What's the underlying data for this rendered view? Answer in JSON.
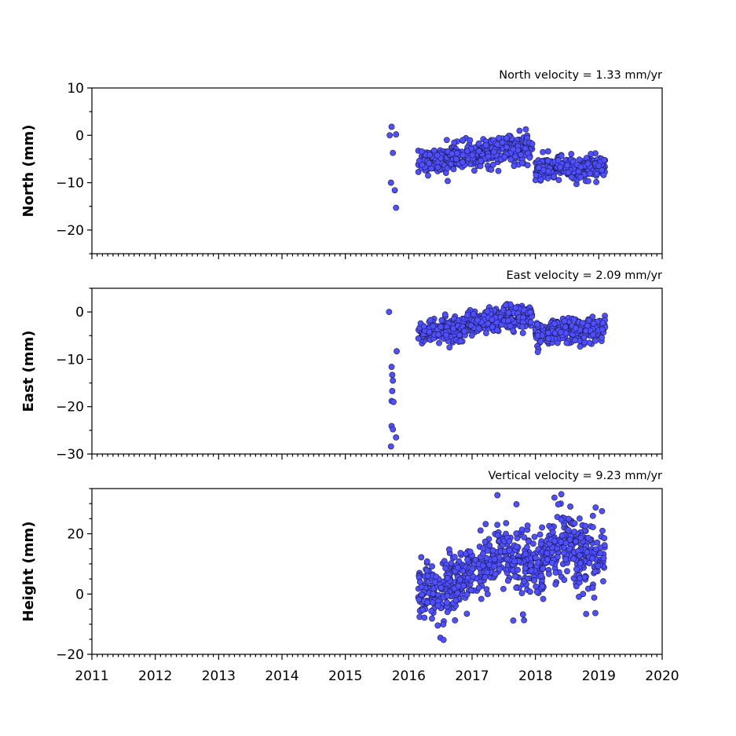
{
  "chart_data": {
    "type": "scatter",
    "x_axis": {
      "ticks": [
        2011,
        2012,
        2013,
        2014,
        2015,
        2016,
        2017,
        2018,
        2019,
        2020
      ],
      "labels": [
        "2011",
        "2012",
        "2013",
        "2014",
        "2015",
        "2016",
        "2017",
        "2018",
        "2019",
        "2020"
      ],
      "range": [
        2011,
        2020
      ],
      "minor_per_year": 12
    },
    "marker_color": "#4f4fff",
    "marker_edge_color": "#1a1a4d",
    "grid": false,
    "panels": [
      {
        "id": "north",
        "title": "North velocity = 1.33 mm/yr",
        "ylabel": "North (mm)",
        "ylim": [
          -25,
          10
        ],
        "yticks": [
          10,
          0,
          -10,
          -20
        ],
        "ytick_labels": [
          "10",
          "0",
          "−10",
          "−20"
        ],
        "velocity_mm_yr": 1.33,
        "outliers": [
          [
            2015.7,
            0.0
          ],
          [
            2015.73,
            1.8
          ],
          [
            2015.75,
            -3.7
          ],
          [
            2015.72,
            -10.0
          ],
          [
            2015.78,
            -11.6
          ],
          [
            2015.8,
            -15.3
          ],
          [
            2015.8,
            0.2
          ]
        ],
        "segments": [
          {
            "x0": 2016.15,
            "x1": 2016.6,
            "y0": -5.8,
            "y1": -5.2,
            "spread": 1.2
          },
          {
            "x0": 2016.6,
            "x1": 2017.95,
            "y0": -4.8,
            "y1": -2.6,
            "spread": 1.4
          },
          {
            "x0": 2018.0,
            "x1": 2019.1,
            "y0": -7.3,
            "y1": -6.6,
            "spread": 1.2
          }
        ]
      },
      {
        "id": "east",
        "title": "East velocity = 2.09 mm/yr",
        "ylabel": "East (mm)",
        "ylim": [
          -30,
          5
        ],
        "yticks": [
          0,
          -10,
          -20,
          -30
        ],
        "ytick_labels": [
          "0",
          "−10",
          "−20",
          "−30"
        ],
        "velocity_mm_yr": 2.09,
        "outliers": [
          [
            2015.69,
            0.0
          ],
          [
            2015.73,
            -11.6
          ],
          [
            2015.74,
            -13.3
          ],
          [
            2015.75,
            -14.5
          ],
          [
            2015.74,
            -16.7
          ],
          [
            2015.73,
            -18.8
          ],
          [
            2015.76,
            -19.0
          ],
          [
            2015.73,
            -24.1
          ],
          [
            2015.75,
            -24.8
          ],
          [
            2015.72,
            -28.4
          ],
          [
            2015.8,
            -26.5
          ],
          [
            2015.81,
            -8.3
          ]
        ],
        "segments": [
          {
            "x0": 2016.15,
            "x1": 2016.85,
            "y0": -4.4,
            "y1": -3.5,
            "spread": 1.3
          },
          {
            "x0": 2016.85,
            "x1": 2017.95,
            "y0": -2.6,
            "y1": -0.8,
            "spread": 1.3
          },
          {
            "x0": 2018.0,
            "x1": 2019.1,
            "y0": -4.5,
            "y1": -3.4,
            "spread": 1.2
          }
        ]
      },
      {
        "id": "height",
        "title": "Vertical velocity = 9.23 mm/yr",
        "ylabel": "Height (mm)",
        "ylim": [
          -20,
          35
        ],
        "yticks": [
          20,
          0,
          -20
        ],
        "ytick_labels": [
          "20",
          "0",
          "−20"
        ],
        "velocity_mm_yr": 9.23,
        "outliers": [
          [
            2017.4,
            32.8
          ],
          [
            2017.7,
            29.8
          ],
          [
            2018.3,
            32.0
          ],
          [
            2018.4,
            30.0
          ],
          [
            2018.95,
            28.7
          ],
          [
            2019.05,
            27.5
          ],
          [
            2016.5,
            -14.5
          ],
          [
            2016.55,
            -15.2
          ],
          [
            2017.65,
            -8.8
          ],
          [
            2017.82,
            -8.7
          ],
          [
            2018.8,
            -6.6
          ]
        ],
        "segments": [
          {
            "x0": 2016.15,
            "x1": 2016.7,
            "y0": 0.5,
            "y1": 2.0,
            "spread": 5.0
          },
          {
            "x0": 2016.7,
            "x1": 2017.55,
            "y0": 3.0,
            "y1": 14.0,
            "spread": 5.0
          },
          {
            "x0": 2017.55,
            "x1": 2018.15,
            "y0": 11.0,
            "y1": 8.0,
            "spread": 5.5
          },
          {
            "x0": 2018.15,
            "x1": 2018.6,
            "y0": 13.0,
            "y1": 18.0,
            "spread": 5.5
          },
          {
            "x0": 2018.6,
            "x1": 2019.1,
            "y0": 14.0,
            "y1": 11.0,
            "spread": 5.5
          }
        ]
      }
    ]
  }
}
